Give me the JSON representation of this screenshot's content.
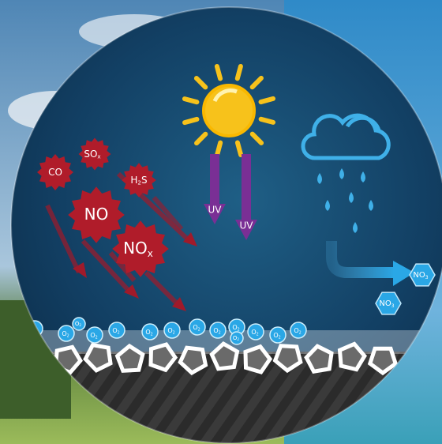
{
  "pollutants": [
    {
      "label": "CO"
    },
    {
      "label": "SO",
      "sub": "x"
    },
    {
      "label": "H",
      "sub": "2",
      "rest": "S"
    },
    {
      "label": "NO"
    },
    {
      "label": "NO",
      "sub": "x"
    }
  ],
  "uv": [
    "UV",
    "UV"
  ],
  "nitrates": [
    {
      "label": "NO",
      "sub": "3"
    },
    {
      "label": "NO",
      "sub": "3"
    }
  ],
  "oxygen": [
    {
      "label": "O",
      "sub": "2"
    },
    {
      "label": "O",
      "sub": "2"
    },
    {
      "label": "O",
      "sub": "2"
    },
    {
      "label": "O",
      "sub": "2"
    },
    {
      "label": "O",
      "sub": "2"
    },
    {
      "label": "O",
      "sub": "2"
    },
    {
      "label": "O",
      "sub": "2"
    },
    {
      "label": "O",
      "sub": "2"
    },
    {
      "label": "O",
      "sub": "2"
    },
    {
      "label": "O",
      "sub": "2"
    },
    {
      "label": "O",
      "sub": "2"
    },
    {
      "label": "O",
      "sub": "2"
    },
    {
      "label": "O",
      "sub": "2"
    },
    {
      "label": "O",
      "sub": "2"
    }
  ]
}
